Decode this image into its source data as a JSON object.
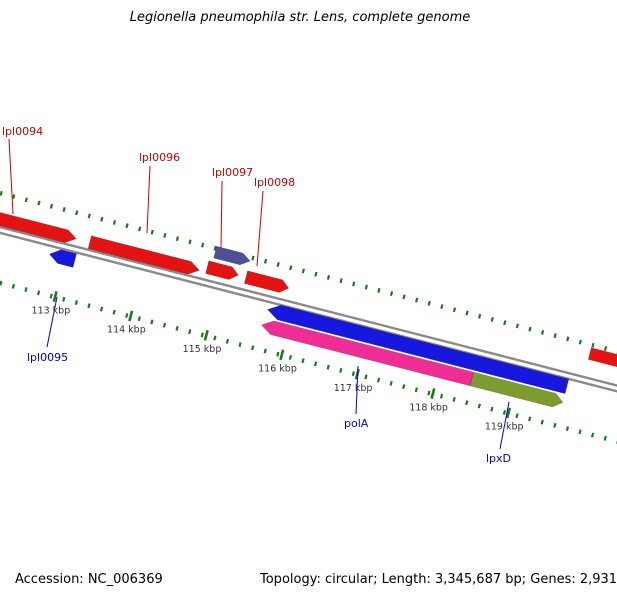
{
  "title": "Legionella pneumophila str. Lens, complete genome",
  "colors": {
    "forward_red": "#e51212",
    "purple": "#4f4f96",
    "blue": "#1717dd",
    "pink": "#ee2e95",
    "olive": "#7d9b2e",
    "backbone": "#8a8a8a",
    "tick_green": "#1c7a1c",
    "label_red": "#cc0000",
    "label_blue": "#0000cc"
  },
  "genes": [
    {
      "id": "lpl0094",
      "label": "lpl0094",
      "strand": "forward",
      "color": "#e51212"
    },
    {
      "id": "lpl0096",
      "label": "lpl0096",
      "strand": "forward",
      "color": "#e51212"
    },
    {
      "id": "cds-unlabeled-1",
      "label": "",
      "strand": "forward",
      "color": "#e51212"
    },
    {
      "id": "lpl0097",
      "label": "lpl0097",
      "strand": "forward",
      "color": "#4f4f96"
    },
    {
      "id": "lpl0098",
      "label": "lpl0098",
      "strand": "forward",
      "color": "#e51212"
    },
    {
      "id": "cds-unlabeled-2",
      "label": "",
      "strand": "forward",
      "color": "#e51212"
    },
    {
      "id": "lpl0095",
      "label": "lpl0095",
      "strand": "reverse",
      "color": "#1717dd"
    },
    {
      "id": "cds-unlabeled-3",
      "label": "",
      "strand": "reverse",
      "color": "#1717dd"
    },
    {
      "id": "polA",
      "label": "polA",
      "strand": "reverse",
      "color": "#ee2e95"
    },
    {
      "id": "lpxD",
      "label": "lpxD",
      "strand": "reverse",
      "color": "#7d9b2e"
    }
  ],
  "ruler": {
    "tick_labels": [
      "113 kbp",
      "114 kbp",
      "115 kbp",
      "116 kbp",
      "117 kbp",
      "118 kbp",
      "119 kbp"
    ]
  },
  "status": {
    "accession": "Accession: NC_006369",
    "summary": "Topology: circular; Length: 3,345,687 bp; Genes: 2,931"
  }
}
